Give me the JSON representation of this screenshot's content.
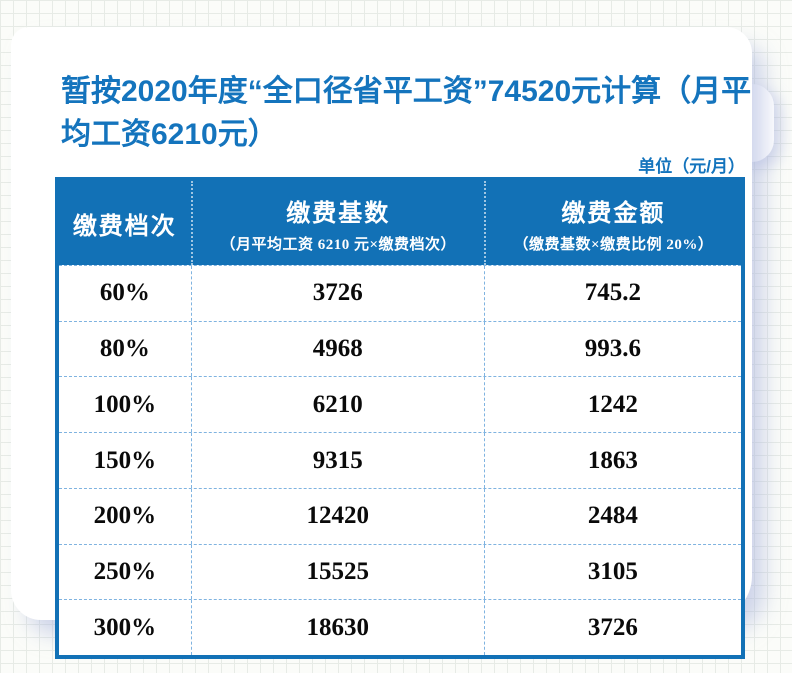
{
  "page": {
    "title": "暂按2020年度“全口径省平工资”74520元计算（月平均工资6210元）",
    "unit_label": "单位（元/月）"
  },
  "table": {
    "header": [
      {
        "label": "缴费档次",
        "sublabel": ""
      },
      {
        "label": "缴费基数",
        "sublabel": "（月平均工资 6210 元×缴费档次）"
      },
      {
        "label": "缴费金额",
        "sublabel": "（缴费基数×缴费比例 20%）"
      }
    ],
    "rows": [
      {
        "tier": "60%",
        "base": "3726",
        "amount": "745.2"
      },
      {
        "tier": "80%",
        "base": "4968",
        "amount": "993.6"
      },
      {
        "tier": "100%",
        "base": "6210",
        "amount": "1242"
      },
      {
        "tier": "150%",
        "base": "9315",
        "amount": "1863"
      },
      {
        "tier": "200%",
        "base": "12420",
        "amount": "2484"
      },
      {
        "tier": "250%",
        "base": "15525",
        "amount": "3105"
      },
      {
        "tier": "300%",
        "base": "18630",
        "amount": "3726"
      }
    ]
  },
  "colors": {
    "accent_blue": "#1271b6",
    "title_blue": "#1474bd",
    "dashed_line": "#7fb3e0",
    "body_text": "#0a0a0a",
    "shadow": "rgba(168,178,220,0.55)"
  }
}
